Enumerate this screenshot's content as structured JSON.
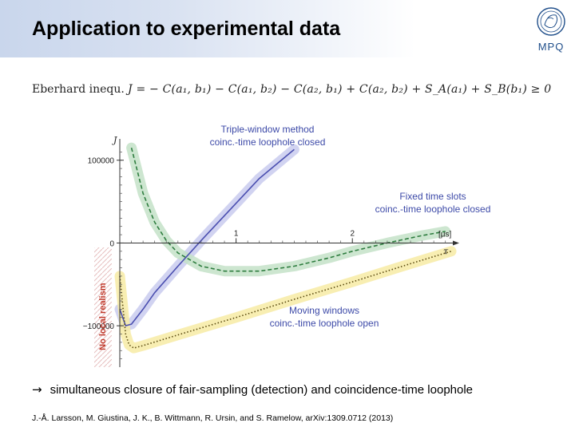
{
  "slide": {
    "title": "Application to experimental data",
    "logo_text": "MPQ",
    "formula_label": "Eberhard inequ.",
    "formula": "J  =  − C(a₁, b₁) − C(a₁, b₂) − C(a₂, b₁) + C(a₂, b₂) + S_A(a₁) + S_B(b₁)  ≥  0",
    "conclusion_arrow": "→",
    "conclusion": "simultaneous closure of fair-sampling (detection) and coincidence-time loophole",
    "citation": "J.-Å. Larsson, M. Giustina, J. K., B. Wittmann, R. Ursin, and S. Ramelow, arXiv:1309.0712 (2013)"
  },
  "chart_data": {
    "type": "line",
    "ylabel": "J",
    "xlabel": "τ",
    "x_unit": "[μs]",
    "xlim": [
      0,
      2.85
    ],
    "ylim": [
      -150000,
      120000
    ],
    "x_ticks": [
      1,
      2
    ],
    "x_tick_labels": [
      "1",
      "2"
    ],
    "y_ticks": [
      100000,
      0,
      -100000
    ],
    "y_tick_labels": [
      "100000",
      "0",
      "−100000"
    ],
    "region_label": "No local realism",
    "series": [
      {
        "name": "",
        "annotation": "Triple-window method\ncoinc.-time loophole closed",
        "color": "#4b4fb0",
        "band": "#c9cbef",
        "style": "solid",
        "x": [
          0.0,
          0.05,
          0.1,
          0.2,
          0.3,
          0.5,
          0.7,
          1.0,
          1.2,
          1.5
        ],
        "y": [
          -80000,
          -100000,
          -98000,
          -80000,
          -60000,
          -28000,
          3000,
          48000,
          78000,
          113000
        ]
      },
      {
        "name": "",
        "annotation": "Fixed time slots\ncoinc.-time loophole closed",
        "color": "#2e7d3f",
        "band": "#c4e2c8",
        "style": "dashed",
        "x": [
          0.1,
          0.2,
          0.3,
          0.4,
          0.5,
          0.7,
          0.9,
          1.2,
          1.5,
          1.8,
          2.0,
          2.3,
          2.6,
          2.8
        ],
        "y": [
          115000,
          60000,
          25000,
          3000,
          -12000,
          -28000,
          -34000,
          -34000,
          -28000,
          -18000,
          -10000,
          0,
          9000,
          14000
        ]
      },
      {
        "name": "",
        "annotation": "Moving windows\ncoinc.-time loophole open",
        "color": "#5a4a10",
        "band": "#f7eba5",
        "style": "dotted",
        "x": [
          0.0,
          0.05,
          0.08,
          0.12,
          0.2,
          0.5,
          1.0,
          1.5,
          2.0,
          2.5,
          2.85
        ],
        "y": [
          -40000,
          -110000,
          -123000,
          -127000,
          -124000,
          -111000,
          -90000,
          -68000,
          -47000,
          -25000,
          -10000
        ]
      }
    ]
  }
}
